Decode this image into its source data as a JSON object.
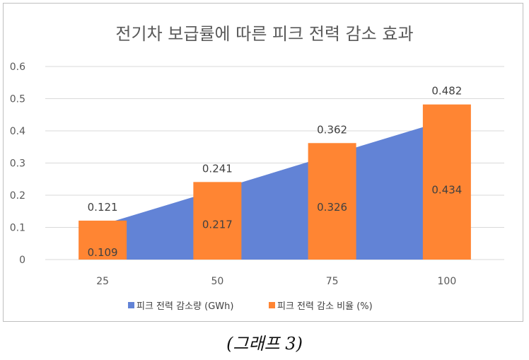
{
  "chart_data": {
    "type": "bar",
    "title": "전기차 보급률에 따른 피크 전력 감소 효과",
    "categories": [
      "25",
      "50",
      "75",
      "100"
    ],
    "ylim": [
      0,
      0.6
    ],
    "yticks": [
      "0",
      "0.1",
      "0.2",
      "0.3",
      "0.4",
      "0.5",
      "0.6"
    ],
    "grid": true,
    "legend_position": "bottom",
    "series": [
      {
        "name": "피크 전력 감소량 (GWh)",
        "kind": "area",
        "color": "#6283d6",
        "values": [
          0.109,
          0.217,
          0.326,
          0.434
        ],
        "labels": [
          "0.109",
          "0.217",
          "0.326",
          "0.434"
        ]
      },
      {
        "name": "피크 전력 감소 비율 (%)",
        "kind": "bar",
        "color": "#ff8533",
        "values": [
          0.121,
          0.241,
          0.362,
          0.482
        ],
        "labels": [
          "0.121",
          "0.241",
          "0.362",
          "0.482"
        ]
      }
    ]
  },
  "caption": "(그래프 3)"
}
